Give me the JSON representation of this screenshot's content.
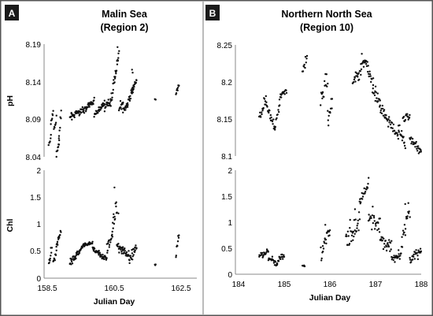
{
  "chart_data": [
    {
      "id": "A",
      "type": "scatter",
      "panel_label": "A",
      "title_line1": "Malin Sea",
      "title_line2": "(Region 2)",
      "xlabel": "Julian Day",
      "xlim": [
        158.5,
        163.1
      ],
      "x_ticks": [
        158.5,
        160.5,
        162.5
      ],
      "top": {
        "ylabel": "pH",
        "ylim": [
          8.04,
          8.19
        ],
        "y_ticks": [
          "8.04",
          "8.09",
          "8.14",
          "8.19"
        ],
        "segments": [
          [
            158.55,
            158.62,
            8.055,
            8.065,
            0.004
          ],
          [
            158.62,
            158.7,
            8.085,
            8.1,
            0.004
          ],
          [
            158.72,
            158.8,
            8.075,
            8.09,
            0.003
          ],
          [
            158.8,
            158.9,
            8.045,
            8.06,
            0.004
          ],
          [
            158.88,
            158.96,
            8.06,
            8.1,
            0.004
          ],
          [
            159.25,
            159.8,
            8.093,
            8.105,
            0.003
          ],
          [
            159.8,
            160.05,
            8.105,
            8.115,
            0.003
          ],
          [
            160.05,
            160.4,
            8.095,
            8.112,
            0.003
          ],
          [
            160.4,
            160.6,
            8.105,
            8.115,
            0.004
          ],
          [
            160.6,
            160.75,
            8.115,
            8.15,
            0.006
          ],
          [
            160.75,
            160.87,
            8.15,
            8.18,
            0.004
          ],
          [
            160.87,
            161.0,
            8.105,
            8.112,
            0.004
          ],
          [
            161.0,
            161.15,
            8.1,
            8.11,
            0.004
          ],
          [
            161.15,
            161.35,
            8.11,
            8.13,
            0.005
          ],
          [
            161.3,
            161.45,
            8.13,
            8.14,
            0.003
          ],
          [
            162.05,
            162.08,
            8.117,
            8.117,
            0.002
          ],
          [
            162.75,
            162.85,
            8.125,
            8.135,
            0.003
          ]
        ],
        "extra_points": [
          [
            161.3,
            8.156
          ],
          [
            161.32,
            8.152
          ],
          [
            160.82,
            8.186
          ]
        ]
      },
      "bottom": {
        "ylabel": "Chl",
        "ylim": [
          0,
          2
        ],
        "y_ticks": [
          "0",
          "0.5",
          "1",
          "1.5",
          "2"
        ],
        "segments": [
          [
            158.55,
            158.65,
            0.25,
            0.55,
            0.06
          ],
          [
            158.7,
            158.8,
            0.3,
            0.5,
            0.05
          ],
          [
            158.8,
            158.95,
            0.55,
            0.9,
            0.08
          ],
          [
            159.25,
            159.5,
            0.3,
            0.45,
            0.05
          ],
          [
            159.5,
            159.7,
            0.45,
            0.6,
            0.04
          ],
          [
            159.7,
            160.0,
            0.6,
            0.65,
            0.03
          ],
          [
            160.0,
            160.2,
            0.55,
            0.45,
            0.04
          ],
          [
            160.2,
            160.45,
            0.45,
            0.35,
            0.05
          ],
          [
            160.45,
            160.65,
            0.5,
            0.85,
            0.1
          ],
          [
            160.65,
            160.8,
            0.85,
            1.4,
            0.15
          ],
          [
            160.8,
            161.0,
            0.65,
            0.5,
            0.08
          ],
          [
            161.0,
            161.2,
            0.55,
            0.4,
            0.08
          ],
          [
            161.2,
            161.45,
            0.3,
            0.55,
            0.1
          ],
          [
            162.05,
            162.08,
            0.25,
            0.25,
            0.02
          ],
          [
            162.75,
            162.85,
            0.45,
            0.85,
            0.12
          ]
        ],
        "extra_points": [
          [
            160.72,
            1.68
          ],
          [
            160.85,
            1.2
          ]
        ]
      }
    },
    {
      "id": "B",
      "type": "scatter",
      "panel_label": "B",
      "title_line1": "Northern North Sea",
      "title_line2": "(Region 10)",
      "xlabel": "Julian Day",
      "xlim": [
        184,
        188
      ],
      "x_ticks": [
        184,
        185,
        186,
        187,
        188
      ],
      "top": {
        "ylabel": "",
        "ylim": [
          8.1,
          8.25
        ],
        "y_ticks": [
          "8.1",
          "8.15",
          "8.2",
          "8.25"
        ],
        "segments": [
          [
            184.45,
            184.6,
            8.15,
            8.18,
            0.008
          ],
          [
            184.6,
            184.8,
            8.17,
            8.135,
            0.005
          ],
          [
            184.8,
            184.9,
            8.14,
            8.17,
            0.006
          ],
          [
            184.9,
            185.05,
            8.18,
            8.19,
            0.004
          ],
          [
            185.4,
            185.5,
            8.215,
            8.235,
            0.006
          ],
          [
            185.8,
            185.95,
            8.175,
            8.205,
            0.01
          ],
          [
            185.95,
            186.05,
            8.15,
            8.17,
            0.008
          ],
          [
            186.5,
            186.8,
            8.2,
            8.23,
            0.008
          ],
          [
            186.8,
            187.0,
            8.225,
            8.185,
            0.008
          ],
          [
            187.0,
            187.2,
            8.18,
            8.155,
            0.008
          ],
          [
            187.2,
            187.5,
            8.155,
            8.125,
            0.006
          ],
          [
            187.5,
            187.65,
            8.14,
            8.115,
            0.006
          ],
          [
            187.6,
            187.75,
            8.15,
            8.155,
            0.005
          ],
          [
            187.75,
            188.0,
            8.125,
            8.105,
            0.006
          ]
        ],
        "extra_points": [
          [
            186.95,
            8.205
          ],
          [
            187.1,
            8.175
          ],
          [
            186.7,
            8.238
          ]
        ]
      },
      "bottom": {
        "ylabel": "",
        "ylim": [
          0,
          2
        ],
        "y_ticks": [
          "0",
          "0.5",
          "1",
          "1.5",
          "2"
        ],
        "segments": [
          [
            184.45,
            184.65,
            0.35,
            0.45,
            0.05
          ],
          [
            184.65,
            184.85,
            0.3,
            0.2,
            0.05
          ],
          [
            184.85,
            185.0,
            0.25,
            0.4,
            0.06
          ],
          [
            185.4,
            185.45,
            0.18,
            0.15,
            0.02
          ],
          [
            185.8,
            186.0,
            0.4,
            0.85,
            0.12
          ],
          [
            186.35,
            186.65,
            0.6,
            1.0,
            0.2
          ],
          [
            186.65,
            186.85,
            1.4,
            1.7,
            0.08
          ],
          [
            186.85,
            187.1,
            1.1,
            0.9,
            0.15
          ],
          [
            187.1,
            187.35,
            0.7,
            0.5,
            0.12
          ],
          [
            187.35,
            187.55,
            0.3,
            0.4,
            0.08
          ],
          [
            187.55,
            187.75,
            0.45,
            1.3,
            0.2
          ],
          [
            187.75,
            188.0,
            0.3,
            0.45,
            0.08
          ]
        ],
        "extra_points": [
          [
            185.9,
            0.95
          ],
          [
            186.55,
            1.25
          ],
          [
            187.65,
            1.35
          ]
        ]
      }
    }
  ]
}
